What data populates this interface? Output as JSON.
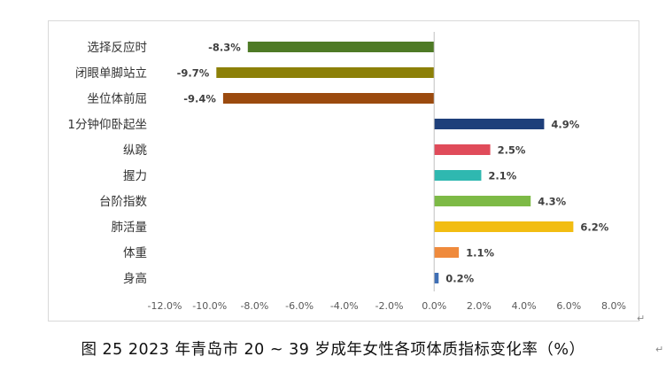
{
  "caption": "图 25 2023 年青岛市 20 ~ 39 岁成年女性各项体质指标变化率（%）",
  "chart_data": {
    "type": "bar",
    "orientation": "horizontal",
    "categories": [
      "选择反应时",
      "闭眼单脚站立",
      "坐位体前屈",
      "1分钟仰卧起坐",
      "纵跳",
      "握力",
      "台阶指数",
      "肺活量",
      "体重",
      "身高"
    ],
    "values": [
      -8.3,
      -9.7,
      -9.4,
      4.9,
      2.5,
      2.1,
      4.3,
      6.2,
      1.1,
      0.2
    ],
    "value_labels": [
      "-8.3%",
      "-9.7%",
      "-9.4%",
      "4.9%",
      "2.5%",
      "2.1%",
      "4.3%",
      "6.2%",
      "1.1%",
      "0.2%"
    ],
    "colors": [
      "#4e7a25",
      "#8c8008",
      "#9b4a0e",
      "#1e3f7a",
      "#e04b5a",
      "#2fb8b0",
      "#7dba46",
      "#f2bd12",
      "#ef8a3c",
      "#3f6fb5"
    ],
    "xlim": [
      -12,
      8
    ],
    "x_ticks": [
      -12,
      -10,
      -8,
      -6,
      -4,
      -2,
      0,
      2,
      4,
      6,
      8
    ],
    "x_tick_labels": [
      "-12.0%",
      "-10.0%",
      "-8.0%",
      "-6.0%",
      "-4.0%",
      "-2.0%",
      "0.0%",
      "2.0%",
      "4.0%",
      "6.0%",
      "8.0%"
    ],
    "grid": false,
    "legend": "none",
    "title": "",
    "xlabel": "",
    "ylabel": ""
  }
}
